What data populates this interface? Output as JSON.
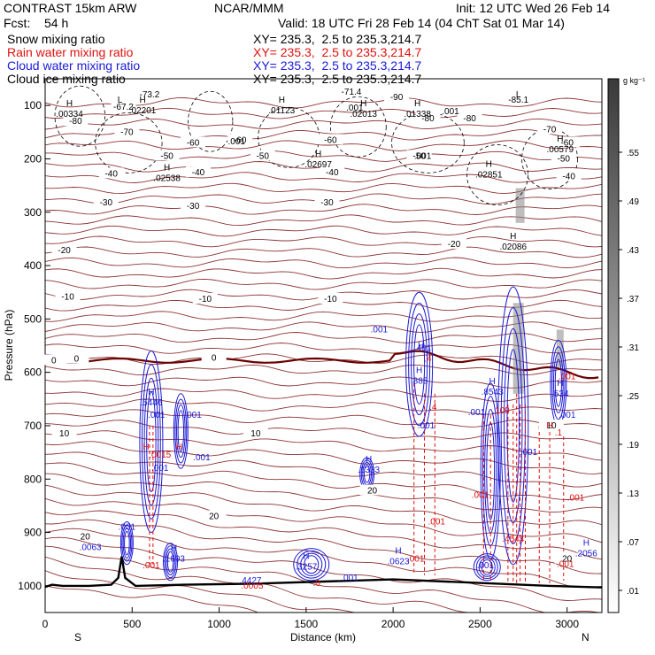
{
  "header": {
    "model": "CONTRAST 15km ARW",
    "center": "NCAR/MMM",
    "init": "Init: 12 UTC Wed 26 Feb 14",
    "fcst_label": "Fcst:",
    "fcst_value": "54 h",
    "valid": "Valid: 18 UTC Fri 28 Feb 14 (04 ChT Sat 01 Mar 14)"
  },
  "fields": [
    {
      "name": "Snow mixing ratio",
      "xy": "XY= 235.3,  2.5 to 235.3,214.7",
      "color": "#000000"
    },
    {
      "name": "Rain water mixing ratio",
      "xy": "XY= 235.3,  2.5 to 235.3,214.7",
      "color": "#e01010"
    },
    {
      "name": "Cloud water mixing ratio",
      "xy": "XY= 235.3,  2.5 to 235.3,214.7",
      "color": "#1a1ad8"
    },
    {
      "name": "Cloud ice mixing ratio",
      "xy": "XY= 235.3,  2.5 to 235.3,214.7",
      "color": "#000000"
    }
  ],
  "chart_data": {
    "type": "cross-section",
    "xlabel": "Distance (km)",
    "ylabel": "Pressure (hPa)",
    "xlim": [
      0,
      3200
    ],
    "ylim": [
      1050,
      50
    ],
    "x_ticks": [
      0,
      500,
      1000,
      1500,
      2000,
      2500,
      3000
    ],
    "y_ticks": [
      100,
      200,
      300,
      400,
      500,
      600,
      700,
      800,
      900,
      1000
    ],
    "endpoint_left": "S",
    "endpoint_right": "N",
    "colorbar": {
      "unit": "g kg⁻¹",
      "ticks": [
        ".55",
        ".49",
        ".43",
        ".37",
        ".31",
        ".25",
        ".19",
        ".13",
        ".07",
        ".01"
      ]
    },
    "temperature_contours": [
      {
        "value": "-73.2",
        "x": 600,
        "p": 80
      },
      {
        "value": "-71.4",
        "x": 1760,
        "p": 75
      },
      {
        "value": "-67.2",
        "x": 450,
        "p": 103
      },
      {
        "value": "-85.1",
        "x": 2720,
        "p": 90
      },
      {
        "value": "-90",
        "x": 2020,
        "p": 85
      },
      {
        "value": "-80",
        "x": 175,
        "p": 130
      },
      {
        "value": "-80",
        "x": 2200,
        "p": 125
      },
      {
        "value": "-80",
        "x": 2440,
        "p": 125
      },
      {
        "value": "-70",
        "x": 470,
        "p": 150
      },
      {
        "value": "-70",
        "x": 2900,
        "p": 145
      },
      {
        "value": "-60",
        "x": 850,
        "p": 170
      },
      {
        "value": "-60",
        "x": 1120,
        "p": 165
      },
      {
        "value": "-60",
        "x": 1640,
        "p": 165
      },
      {
        "value": "-60",
        "x": 3000,
        "p": 170
      },
      {
        "value": "-50",
        "x": 700,
        "p": 195
      },
      {
        "value": "-50",
        "x": 1250,
        "p": 195
      },
      {
        "value": "-50",
        "x": 2150,
        "p": 195
      },
      {
        "value": "-50",
        "x": 2980,
        "p": 200
      },
      {
        "value": "-40",
        "x": 380,
        "p": 228
      },
      {
        "value": "-40",
        "x": 880,
        "p": 226
      },
      {
        "value": "-40",
        "x": 1650,
        "p": 226
      },
      {
        "value": "-40",
        "x": 3010,
        "p": 233
      },
      {
        "value": "-30",
        "x": 350,
        "p": 282
      },
      {
        "value": "-30",
        "x": 850,
        "p": 289
      },
      {
        "value": "-30",
        "x": 1620,
        "p": 282
      },
      {
        "value": "-20",
        "x": 110,
        "p": 372
      },
      {
        "value": "-20",
        "x": 2350,
        "p": 360
      },
      {
        "value": "-10",
        "x": 130,
        "p": 459
      },
      {
        "value": "-10",
        "x": 920,
        "p": 463
      },
      {
        "value": "-10",
        "x": 1640,
        "p": 463
      },
      {
        "value": "0",
        "x": 50,
        "p": 578
      },
      {
        "value": "0",
        "x": 180,
        "p": 575
      },
      {
        "value": "0",
        "x": 970,
        "p": 573
      },
      {
        "value": "10",
        "x": 110,
        "p": 715
      },
      {
        "value": "10",
        "x": 1210,
        "p": 715
      },
      {
        "value": "10",
        "x": 2910,
        "p": 700
      },
      {
        "value": "20",
        "x": 970,
        "p": 870
      },
      {
        "value": "20",
        "x": 1880,
        "p": 822
      },
      {
        "value": "20",
        "x": 3000,
        "p": 950
      }
    ],
    "h_markers": [
      {
        "label": "H",
        "value": ".00334",
        "x": 140,
        "p": 111,
        "color": "#000000"
      },
      {
        "label": "H",
        "value": ".02201",
        "x": 560,
        "p": 105,
        "color": "#000000"
      },
      {
        "label": "H",
        "value": ".01123",
        "x": 1360,
        "p": 105,
        "color": "#000000"
      },
      {
        "label": "H",
        "value": ".02013",
        "x": 1830,
        "p": 111,
        "color": "#000000"
      },
      {
        "label": "H",
        "value": ".01338",
        "x": 2140,
        "p": 111,
        "color": "#000000"
      },
      {
        "label": "H",
        "value": ".00579",
        "x": 2960,
        "p": 178,
        "color": "#000000"
      },
      {
        "label": "H",
        "value": ".02697",
        "x": 1570,
        "p": 206,
        "color": "#000000"
      },
      {
        "label": "H",
        "value": ".02538",
        "x": 700,
        "p": 232,
        "color": "#000000"
      },
      {
        "label": "H",
        "value": ".02851",
        "x": 2550,
        "p": 225,
        "color": "#000000"
      },
      {
        "label": "H",
        "value": ".02086",
        "x": 2690,
        "p": 360,
        "color": "#000000"
      },
      {
        "label": "H",
        "value": ".5446",
        "x": 610,
        "p": 652,
        "color": "#1a1ad8"
      },
      {
        "label": "H",
        "value": ".885",
        "x": 2150,
        "p": 611,
        "color": "#1a1ad8"
      },
      {
        "label": "H",
        "value": ".8543",
        "x": 2570,
        "p": 632,
        "color": "#1a1ad8"
      },
      {
        "label": "H",
        "value": ".534",
        "x": 2960,
        "p": 635,
        "color": "#1a1ad8"
      },
      {
        "label": "H",
        "value": ".1333",
        "x": 1860,
        "p": 778,
        "color": "#1a1ad8"
      },
      {
        "label": "H",
        "value": ".1693",
        "x": 740,
        "p": 945,
        "color": "#1a1ad8"
      },
      {
        "label": "H",
        "value": ".3257",
        "x": 1500,
        "p": 960,
        "color": "#1a1ad8"
      },
      {
        "label": "H",
        "value": ".0623",
        "x": 2030,
        "p": 950,
        "color": "#1a1ad8"
      },
      {
        "label": "H",
        "value": ".2056",
        "x": 3110,
        "p": 935,
        "color": "#1a1ad8"
      }
    ],
    "value_labels": [
      {
        "text": ".001",
        "x": 1100,
        "p": 168,
        "color": "#000000"
      },
      {
        "text": ".001",
        "x": 1780,
        "p": 105,
        "color": "#000000"
      },
      {
        "text": ".001",
        "x": 2330,
        "p": 111,
        "color": "#000000"
      },
      {
        "text": ".001",
        "x": 2170,
        "p": 195,
        "color": "#000000"
      },
      {
        "text": ".001",
        "x": 1920,
        "p": 520,
        "color": "#1a1ad8"
      },
      {
        "text": ".401",
        "x": 2170,
        "p": 555,
        "color": "#1a1ad8"
      },
      {
        "text": ".001",
        "x": 640,
        "p": 680,
        "color": "#1a1ad8"
      },
      {
        "text": ".001",
        "x": 850,
        "p": 680,
        "color": "#1a1ad8"
      },
      {
        "text": ".001",
        "x": 660,
        "p": 780,
        "color": "#1a1ad8"
      },
      {
        "text": ".001",
        "x": 2480,
        "p": 675,
        "color": "#1a1ad8"
      },
      {
        "text": ".001",
        "x": 3000,
        "p": 680,
        "color": "#1a1ad8"
      },
      {
        "text": ".001",
        "x": 2190,
        "p": 700,
        "color": "#1a1ad8"
      },
      {
        "text": ".001",
        "x": 2780,
        "p": 750,
        "color": "#1a1ad8"
      },
      {
        "text": ".001",
        "x": 900,
        "p": 760,
        "color": "#1a1ad8"
      },
      {
        "text": ".001",
        "x": 470,
        "p": 890,
        "color": "#1a1ad8"
      },
      {
        "text": ".001",
        "x": 2530,
        "p": 962,
        "color": "#1a1ad8"
      },
      {
        "text": ".001",
        "x": 1750,
        "p": 985,
        "color": "#1a1ad8"
      },
      {
        "text": ".0063",
        "x": 260,
        "p": 928,
        "color": "#1a1ad8"
      },
      {
        "text": ".001",
        "x": 3000,
        "p": 608,
        "color": "#e01010"
      },
      {
        "text": ".109",
        "x": 2620,
        "p": 672,
        "color": "#e01010"
      },
      {
        "text": ".4",
        "x": 2230,
        "p": 665,
        "color": "#e01010"
      },
      {
        "text": ".0015",
        "x": 660,
        "p": 755,
        "color": "#e01010"
      },
      {
        "text": ".1",
        "x": 2950,
        "p": 713,
        "color": "#e01010"
      },
      {
        "text": ".001",
        "x": 2500,
        "p": 830,
        "color": "#e01010"
      },
      {
        "text": ".001",
        "x": 3050,
        "p": 835,
        "color": "#e01010"
      },
      {
        "text": ".001",
        "x": 2250,
        "p": 880,
        "color": "#e01010"
      },
      {
        "text": ".001",
        "x": 610,
        "p": 962,
        "color": "#e01010"
      },
      {
        "text": ".001",
        "x": 2130,
        "p": 950,
        "color": "#e01010"
      },
      {
        "text": ".4544",
        "x": 2690,
        "p": 912,
        "color": "#e01010"
      },
      {
        "text": ".001",
        "x": 2990,
        "p": 960,
        "color": "#e01010"
      },
      {
        "text": ".0005",
        "x": 1190,
        "p": 1000,
        "color": "#e01010"
      },
      {
        "text": ".0",
        "x": 1560,
        "p": 995,
        "color": "#e01010"
      },
      {
        "text": ".4427",
        "x": 1180,
        "p": 990,
        "color": "#1a1ad8"
      },
      {
        "text": ".4",
        "x": 2200,
        "p": 575,
        "color": "#e01010"
      }
    ],
    "misc_labels": [
      {
        "text": "L",
        "x": 430,
        "p": 90,
        "color": "#000000"
      },
      {
        "text": "L",
        "x": 2720,
        "p": 80,
        "color": "#000000"
      },
      {
        "text": "H",
        "x": 2160,
        "p": 550,
        "color": "#1a1ad8"
      },
      {
        "text": "H",
        "x": 770,
        "p": 740,
        "color": "#e01010"
      },
      {
        "text": "H",
        "x": 2900,
        "p": 700,
        "color": "#e01010"
      },
      {
        "text": "H",
        "x": 580,
        "p": 740,
        "color": "#e01010"
      },
      {
        "text": "20",
        "x": 230,
        "p": 908,
        "color": "#000000"
      }
    ]
  }
}
